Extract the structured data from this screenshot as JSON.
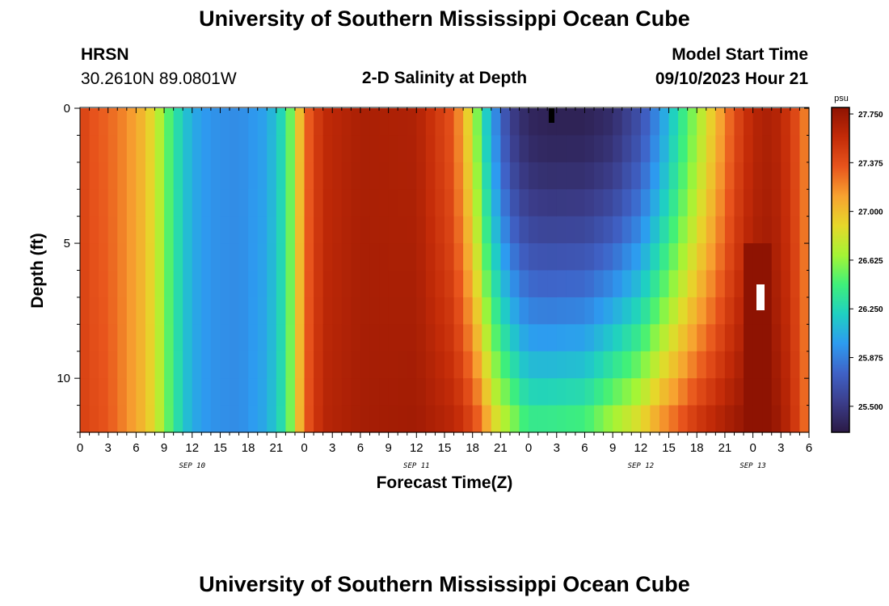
{
  "header": {
    "title": "University of Southern Mississippi Ocean Cube",
    "station_name": "HRSN",
    "station_coords": "30.2610N  89.0801W",
    "plot_title": "2-D Salinity at Depth",
    "model_start_label": "Model Start Time",
    "model_start_value": "09/10/2023 Hour 21",
    "footer_title": "University of Southern Mississippi Ocean Cube"
  },
  "chart_data": {
    "type": "heatmap",
    "title": "2-D Salinity at Depth",
    "xlabel": "Forecast Time(Z)",
    "ylabel": "Depth (ft)",
    "x_tick_labels": [
      "0",
      "3",
      "6",
      "9",
      "12",
      "15",
      "18",
      "21",
      "0",
      "3",
      "6",
      "9",
      "12",
      "15",
      "18",
      "21",
      "0",
      "3",
      "6",
      "9",
      "12",
      "15",
      "18",
      "21",
      "0",
      "3",
      "6"
    ],
    "date_labels": [
      "SEP 10",
      "SEP 11",
      "SEP 12",
      "SEP 13"
    ],
    "xlim_hours": [
      0,
      78
    ],
    "ylim_ft": [
      0,
      12
    ],
    "y_tick_labels": [
      "0",
      "5",
      "10"
    ],
    "y_ticks": [
      0,
      5,
      10
    ],
    "grid": false,
    "colorbar": {
      "unit": "psu",
      "labels": [
        "27.750",
        "27.375",
        "27.000",
        "26.625",
        "26.250",
        "25.875",
        "25.500"
      ],
      "values": [
        27.75,
        27.375,
        27.0,
        26.625,
        26.25,
        25.875,
        25.5
      ],
      "range": [
        25.3,
        27.8
      ],
      "colors": [
        "#2b1a45",
        "#3b3d8a",
        "#3f62c7",
        "#2d9bf0",
        "#1fd0c2",
        "#3ff07a",
        "#a4f535",
        "#e6d82a",
        "#f7a230",
        "#e8541c",
        "#c32b08",
        "#8e1302"
      ]
    },
    "profile_hours": [
      0,
      1.5,
      3,
      5,
      7,
      8,
      9,
      10,
      11,
      12,
      14,
      17,
      20,
      22,
      23,
      24,
      26,
      30,
      36,
      40,
      41,
      42,
      43,
      44,
      45,
      46,
      47,
      48,
      50,
      54,
      57,
      60,
      62,
      66,
      70,
      72,
      74,
      76,
      78
    ],
    "surface_psu": [
      27.45,
      27.35,
      27.3,
      27.18,
      27.0,
      26.82,
      26.6,
      26.35,
      26.2,
      26.05,
      25.95,
      25.92,
      26.02,
      26.32,
      26.75,
      27.25,
      27.58,
      27.68,
      27.66,
      27.35,
      27.05,
      26.8,
      26.35,
      26.02,
      25.78,
      25.55,
      25.45,
      25.38,
      25.35,
      25.35,
      25.42,
      25.65,
      25.95,
      26.65,
      27.38,
      27.62,
      27.68,
      27.5,
      27.15
    ],
    "bottom_psu": [
      27.45,
      27.4,
      27.35,
      27.18,
      27.0,
      26.85,
      26.62,
      26.38,
      26.2,
      26.05,
      25.95,
      25.92,
      26.05,
      26.35,
      26.78,
      27.3,
      27.62,
      27.7,
      27.72,
      27.62,
      27.55,
      27.45,
      27.3,
      27.0,
      26.82,
      26.72,
      26.55,
      26.45,
      26.45,
      26.5,
      26.75,
      26.95,
      27.2,
      27.55,
      27.74,
      27.8,
      27.8,
      27.6,
      27.2
    ],
    "depth_exponent": 1.6,
    "max_salinity_patch": {
      "hours": [
        71.5,
        73.5
      ],
      "depth_ft": [
        5.5,
        12
      ],
      "psu": 27.8
    }
  }
}
